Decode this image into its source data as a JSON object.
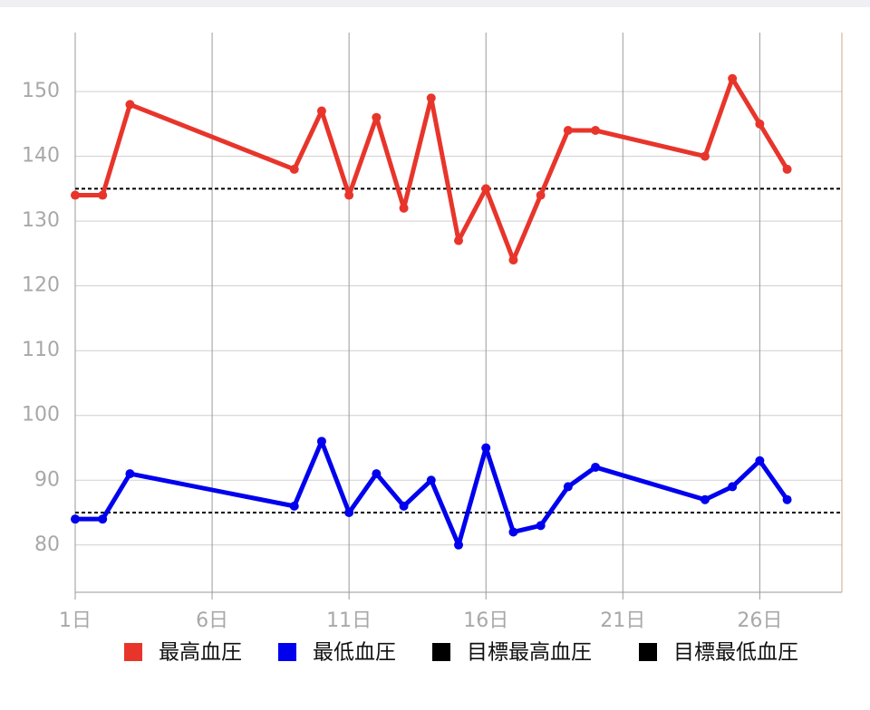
{
  "chart_data": {
    "type": "line",
    "x": [
      1,
      2,
      3,
      9,
      10,
      11,
      12,
      13,
      14,
      15,
      16,
      17,
      18,
      19,
      20,
      24,
      25,
      26,
      27
    ],
    "series": [
      {
        "name": "最高血圧",
        "color": "#e8352b",
        "values": [
          134,
          134,
          148,
          138,
          147,
          134,
          146,
          132,
          149,
          127,
          135,
          124,
          134,
          144,
          144,
          140,
          152,
          145,
          138
        ]
      },
      {
        "name": "最低血圧",
        "color": "#0000ee",
        "values": [
          84,
          84,
          91,
          86,
          96,
          85,
          91,
          86,
          90,
          80,
          95,
          82,
          83,
          89,
          92,
          87,
          89,
          93,
          87
        ]
      }
    ],
    "targets": [
      {
        "name": "目標最高血圧",
        "color": "#000000",
        "value": 135
      },
      {
        "name": "目標最低血圧",
        "color": "#000000",
        "value": 85
      }
    ],
    "xlim": [
      1,
      29
    ],
    "ylim": [
      72.7,
      159.1
    ],
    "xticks": [
      {
        "value": 1,
        "label": "1日"
      },
      {
        "value": 6,
        "label": "6日"
      },
      {
        "value": 11,
        "label": "11日"
      },
      {
        "value": 16,
        "label": "16日"
      },
      {
        "value": 21,
        "label": "21日"
      },
      {
        "value": 26,
        "label": "26日"
      }
    ],
    "yticks": [
      80,
      90,
      100,
      110,
      120,
      130,
      140,
      150
    ],
    "grid": true,
    "legend": "bottom"
  }
}
